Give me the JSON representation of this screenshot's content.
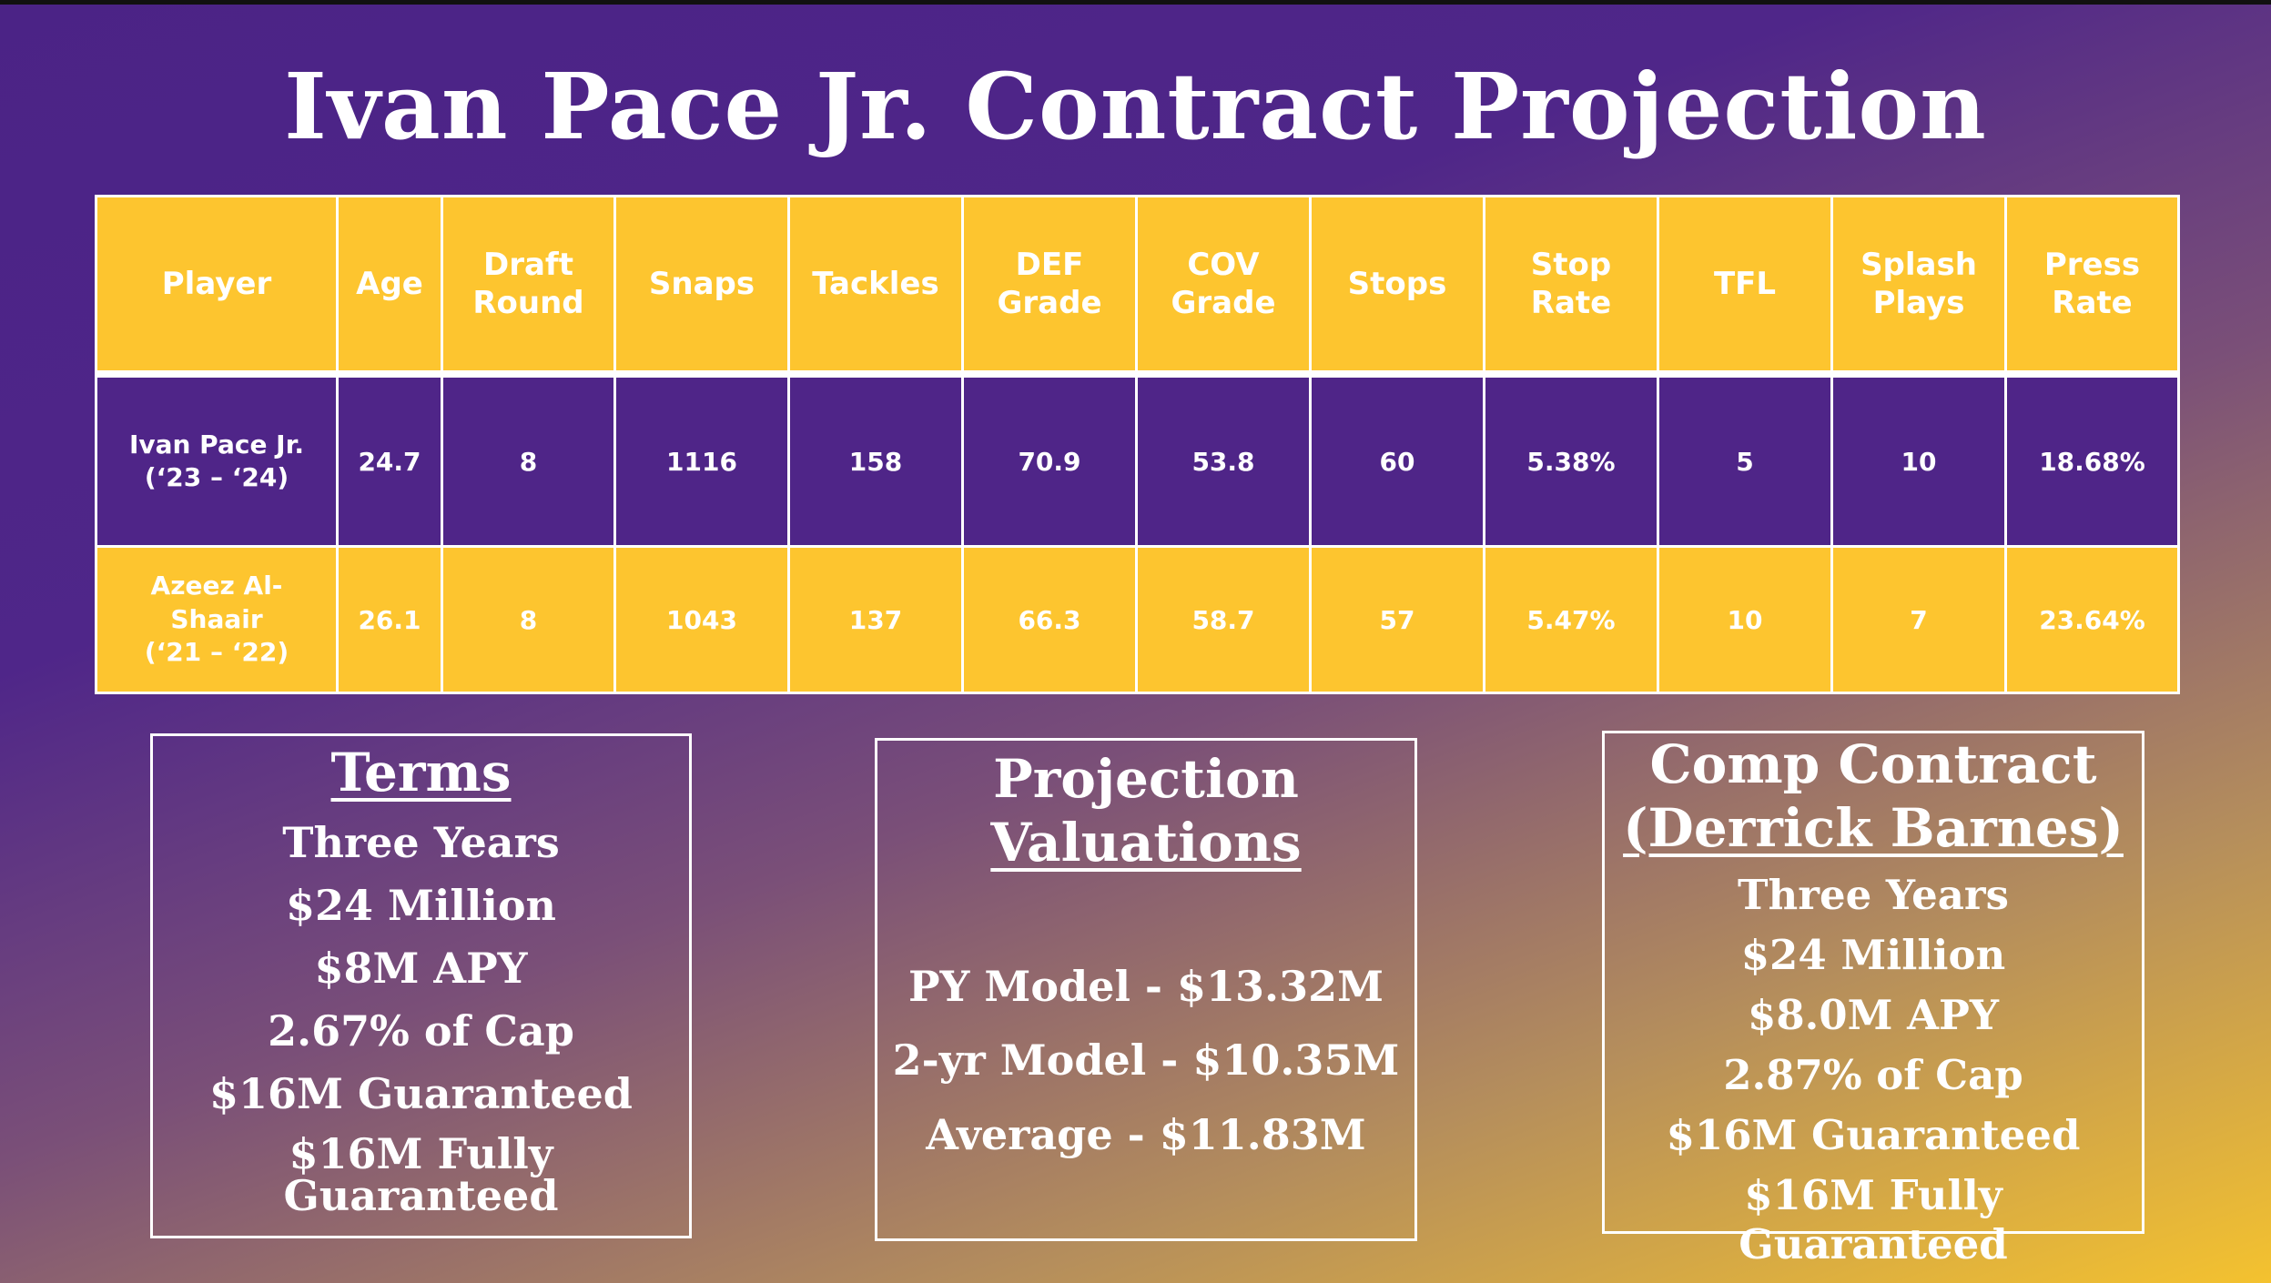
{
  "title": "Ivan Pace Jr. Contract Projection",
  "colors": {
    "purple": "#4f2588",
    "gold": "#fdc52f",
    "white": "#ffffff"
  },
  "table": {
    "headers": [
      "Player",
      "Age",
      "Draft Round",
      "Snaps",
      "Tackles",
      "DEF Grade",
      "COV Grade",
      "Stops",
      "Stop Rate",
      "TFL",
      "Splash Plays",
      "Press Rate"
    ],
    "rows": [
      {
        "player": "Ivan Pace Jr.\n(‘23 – ‘24)",
        "cells": [
          "24.7",
          "8",
          "1116",
          "158",
          "70.9",
          "53.8",
          "60",
          "5.38%",
          "5",
          "10",
          "18.68%"
        ]
      },
      {
        "player": "Azeez Al-\nShaair\n(‘21 – ‘22)",
        "cells": [
          "26.1",
          "8",
          "1043",
          "137",
          "66.3",
          "58.7",
          "57",
          "5.47%",
          "10",
          "7",
          "23.64%"
        ]
      }
    ]
  },
  "terms": {
    "heading": "Terms",
    "lines": [
      "Three Years",
      "$24 Million",
      "$8M APY",
      "2.67% of Cap",
      "$16M Guaranteed",
      "$16M Fully Guaranteed"
    ]
  },
  "projection": {
    "heading_line1": "Projection",
    "heading_line2": "Valuations",
    "lines": [
      "PY Model - $13.32M",
      "2-yr Model - $10.35M",
      "Average - $11.83M"
    ]
  },
  "comp": {
    "heading_line1": "Comp Contract",
    "heading_line2": "(Derrick Barnes)",
    "lines": [
      "Three Years",
      "$24 Million",
      "$8.0M APY",
      "2.87% of Cap",
      "$16M Guaranteed",
      "$16M Fully Guaranteed"
    ]
  }
}
